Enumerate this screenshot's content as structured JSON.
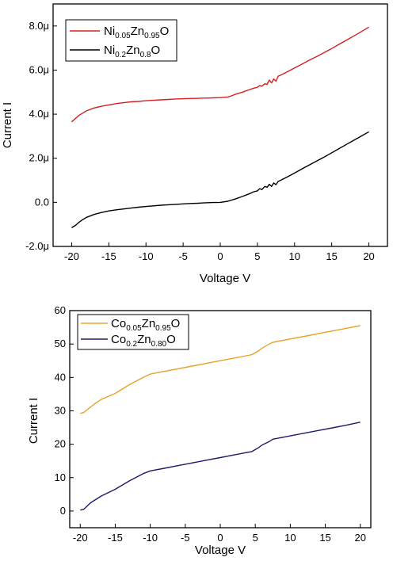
{
  "chart_data": [
    {
      "type": "line",
      "xlabel": "Voltage V",
      "ylabel": "Current I",
      "xlim": [
        -22.5,
        22.5
      ],
      "ylim": [
        -2.0,
        9.0
      ],
      "x_ticks": [
        -20,
        -15,
        -10,
        -5,
        0,
        5,
        10,
        15,
        20
      ],
      "y_ticks": [
        -2.0,
        0.0,
        2.0,
        4.0,
        6.0,
        8.0
      ],
      "y_tick_labels": [
        "-2.0μ",
        "0.0",
        "2.0μ",
        "4.0μ",
        "6.0μ",
        "8.0μ"
      ],
      "grid": false,
      "legend_position": "top-left",
      "series": [
        {
          "name": "Ni0.05Zn0.95O",
          "legend": {
            "base1": "Ni",
            "sub1": "0.05",
            "base2": "Zn",
            "sub2": "0.95",
            "base3": "O"
          },
          "color": "#d42020",
          "points": [
            [
              -20,
              3.65
            ],
            [
              -19.5,
              3.8
            ],
            [
              -19,
              3.95
            ],
            [
              -18.5,
              4.05
            ],
            [
              -18,
              4.15
            ],
            [
              -17,
              4.28
            ],
            [
              -16,
              4.36
            ],
            [
              -15,
              4.42
            ],
            [
              -14,
              4.48
            ],
            [
              -13,
              4.52
            ],
            [
              -12,
              4.56
            ],
            [
              -11,
              4.58
            ],
            [
              -10,
              4.61
            ],
            [
              -9,
              4.63
            ],
            [
              -8,
              4.65
            ],
            [
              -7,
              4.67
            ],
            [
              -6,
              4.69
            ],
            [
              -5,
              4.7
            ],
            [
              -4,
              4.71
            ],
            [
              -3,
              4.72
            ],
            [
              -2,
              4.73
            ],
            [
              -1,
              4.74
            ],
            [
              0,
              4.75
            ],
            [
              1,
              4.78
            ],
            [
              1.5,
              4.83
            ],
            [
              2,
              4.9
            ],
            [
              3,
              5.0
            ],
            [
              4,
              5.12
            ],
            [
              4.5,
              5.18
            ],
            [
              5,
              5.22
            ],
            [
              5.3,
              5.3
            ],
            [
              5.6,
              5.27
            ],
            [
              6,
              5.38
            ],
            [
              6.3,
              5.35
            ],
            [
              6.6,
              5.55
            ],
            [
              6.9,
              5.42
            ],
            [
              7.2,
              5.6
            ],
            [
              7.5,
              5.5
            ],
            [
              7.8,
              5.72
            ],
            [
              8,
              5.75
            ],
            [
              9,
              5.92
            ],
            [
              10,
              6.1
            ],
            [
              11,
              6.27
            ],
            [
              12,
              6.45
            ],
            [
              13,
              6.62
            ],
            [
              14,
              6.8
            ],
            [
              15,
              6.98
            ],
            [
              16,
              7.17
            ],
            [
              17,
              7.36
            ],
            [
              18,
              7.55
            ],
            [
              19,
              7.75
            ],
            [
              20,
              7.95
            ]
          ]
        },
        {
          "name": "Ni0.2Zn0.8O",
          "legend": {
            "base1": "Ni",
            "sub1": "0.2",
            "base2": "Zn",
            "sub2": "0.8",
            "base3": "O"
          },
          "color": "#000000",
          "points": [
            [
              -20,
              -1.15
            ],
            [
              -19.5,
              -1.05
            ],
            [
              -19,
              -0.9
            ],
            [
              -18.5,
              -0.78
            ],
            [
              -18,
              -0.68
            ],
            [
              -17,
              -0.55
            ],
            [
              -16,
              -0.46
            ],
            [
              -15,
              -0.39
            ],
            [
              -14,
              -0.34
            ],
            [
              -13,
              -0.3
            ],
            [
              -12,
              -0.26
            ],
            [
              -11,
              -0.22
            ],
            [
              -10,
              -0.19
            ],
            [
              -9,
              -0.16
            ],
            [
              -8,
              -0.13
            ],
            [
              -7,
              -0.11
            ],
            [
              -6,
              -0.09
            ],
            [
              -5,
              -0.07
            ],
            [
              -4,
              -0.05
            ],
            [
              -3,
              -0.04
            ],
            [
              -2,
              -0.02
            ],
            [
              -1,
              -0.01
            ],
            [
              0,
              0.0
            ],
            [
              1,
              0.05
            ],
            [
              2,
              0.15
            ],
            [
              3,
              0.27
            ],
            [
              4,
              0.4
            ],
            [
              4.5,
              0.48
            ],
            [
              5,
              0.52
            ],
            [
              5.3,
              0.62
            ],
            [
              5.6,
              0.58
            ],
            [
              6,
              0.72
            ],
            [
              6.3,
              0.68
            ],
            [
              6.6,
              0.82
            ],
            [
              6.9,
              0.72
            ],
            [
              7.2,
              0.88
            ],
            [
              7.5,
              0.8
            ],
            [
              7.8,
              0.95
            ],
            [
              8,
              0.98
            ],
            [
              9,
              1.15
            ],
            [
              10,
              1.33
            ],
            [
              11,
              1.52
            ],
            [
              12,
              1.7
            ],
            [
              13,
              1.88
            ],
            [
              14,
              2.06
            ],
            [
              15,
              2.25
            ],
            [
              16,
              2.44
            ],
            [
              17,
              2.63
            ],
            [
              18,
              2.82
            ],
            [
              19,
              3.01
            ],
            [
              20,
              3.2
            ]
          ]
        }
      ]
    },
    {
      "type": "line",
      "xlabel": "Voltage V",
      "ylabel": "Current I",
      "xlim": [
        -21.5,
        21.5
      ],
      "ylim": [
        -5,
        60
      ],
      "x_ticks": [
        -20,
        -15,
        -10,
        -5,
        0,
        5,
        10,
        15,
        20
      ],
      "y_ticks": [
        0,
        10,
        20,
        30,
        40,
        50,
        60
      ],
      "y_tick_labels": [
        "0",
        "10",
        "20",
        "30",
        "40",
        "50",
        "60"
      ],
      "grid": false,
      "legend_position": "top-left",
      "series": [
        {
          "name": "Co0.05Zn0.95O",
          "legend": {
            "base1": "Co",
            "sub1": "0.05",
            "base2": "Zn",
            "sub2": "0.95",
            "base3": "O"
          },
          "color": "#e8a02c",
          "points": [
            [
              -20,
              29.2
            ],
            [
              -19.5,
              29.5
            ],
            [
              -18,
              32
            ],
            [
              -17,
              33.4
            ],
            [
              -15,
              35.2
            ],
            [
              -13,
              37.8
            ],
            [
              -11,
              40
            ],
            [
              -10,
              41
            ],
            [
              -8,
              41.8
            ],
            [
              -6,
              42.6
            ],
            [
              -4,
              43.4
            ],
            [
              -2,
              44.2
            ],
            [
              0,
              45
            ],
            [
              2,
              45.8
            ],
            [
              4,
              46.6
            ],
            [
              4.5,
              46.8
            ],
            [
              5,
              47.4
            ],
            [
              5.5,
              48
            ],
            [
              6,
              48.8
            ],
            [
              7,
              50
            ],
            [
              7.5,
              50.5
            ],
            [
              10,
              51.5
            ],
            [
              12,
              52.3
            ],
            [
              14,
              53.1
            ],
            [
              16,
              53.9
            ],
            [
              18,
              54.7
            ],
            [
              20,
              55.5
            ]
          ]
        },
        {
          "name": "Co0.2Zn0.80O",
          "legend": {
            "base1": "Co",
            "sub1": "0.2",
            "base2": "Zn",
            "sub2": "0.80",
            "base3": "O"
          },
          "color": "#1c1c6a",
          "points": [
            [
              -20,
              0.3
            ],
            [
              -19.5,
              0.5
            ],
            [
              -18.5,
              2.5
            ],
            [
              -17,
              4.5
            ],
            [
              -15,
              6.5
            ],
            [
              -13,
              9
            ],
            [
              -11,
              11.2
            ],
            [
              -10,
              12
            ],
            [
              -8,
              12.8
            ],
            [
              -6,
              13.6
            ],
            [
              -4,
              14.4
            ],
            [
              -2,
              15.2
            ],
            [
              0,
              16
            ],
            [
              2,
              16.8
            ],
            [
              4,
              17.6
            ],
            [
              4.5,
              17.8
            ],
            [
              5,
              18.4
            ],
            [
              5.5,
              19
            ],
            [
              6,
              19.8
            ],
            [
              7,
              20.8
            ],
            [
              7.5,
              21.5
            ],
            [
              10,
              22.5
            ],
            [
              12,
              23.3
            ],
            [
              14,
              24.1
            ],
            [
              16,
              24.9
            ],
            [
              18,
              25.7
            ],
            [
              20,
              26.6
            ]
          ]
        }
      ]
    }
  ]
}
